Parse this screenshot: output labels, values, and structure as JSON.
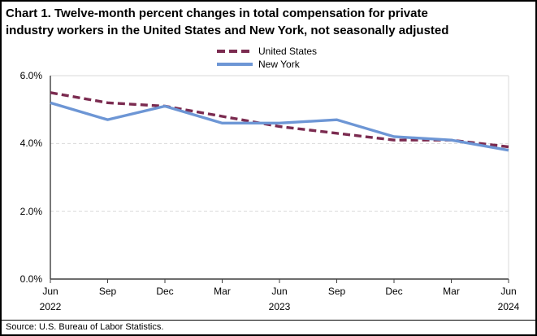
{
  "chart_data": {
    "type": "line",
    "title": "Chart 1. Twelve-month percent changes in total compensation for private industry workers in the United States and New York, not seasonally adjusted",
    "title_lines": [
      "Chart 1. Twelve-month percent changes in total compensation for private",
      "industry workers in the United States and New York, not seasonally adjusted"
    ],
    "categories": [
      "Jun 2022",
      "Sep 2022",
      "Dec 2022",
      "Mar 2023",
      "Jun 2023",
      "Sep 2023",
      "Dec 2023",
      "Mar 2024",
      "Jun 2024"
    ],
    "x_tick_months": [
      "Jun",
      "Sep",
      "Dec",
      "Mar",
      "Jun",
      "Sep",
      "Dec",
      "Mar",
      "Jun"
    ],
    "x_tick_years": [
      "2022",
      "",
      "",
      "",
      "2023",
      "",
      "",
      "",
      "2024"
    ],
    "y_ticks": [
      "6.0%",
      "4.0%",
      "2.0%",
      "0.0%"
    ],
    "y_tick_values": [
      6,
      4,
      2,
      0
    ],
    "ylim": [
      0,
      6
    ],
    "unit": "percent",
    "grid": "horizontal-dashed",
    "legend_position": "top-center",
    "series": [
      {
        "name": "United States",
        "style": "dashed",
        "color": "#7B2B50",
        "values": [
          5.5,
          5.2,
          5.1,
          4.8,
          4.5,
          4.3,
          4.1,
          4.1,
          3.9
        ]
      },
      {
        "name": "New York",
        "style": "solid",
        "color": "#6D96D5",
        "values": [
          5.2,
          4.7,
          5.1,
          4.6,
          4.6,
          4.7,
          4.2,
          4.1,
          3.8
        ]
      }
    ],
    "axis_color": "#3F3F3F",
    "grid_color": "#D9D9D9",
    "source": "Source: U.S. Bureau of Labor Statistics."
  }
}
